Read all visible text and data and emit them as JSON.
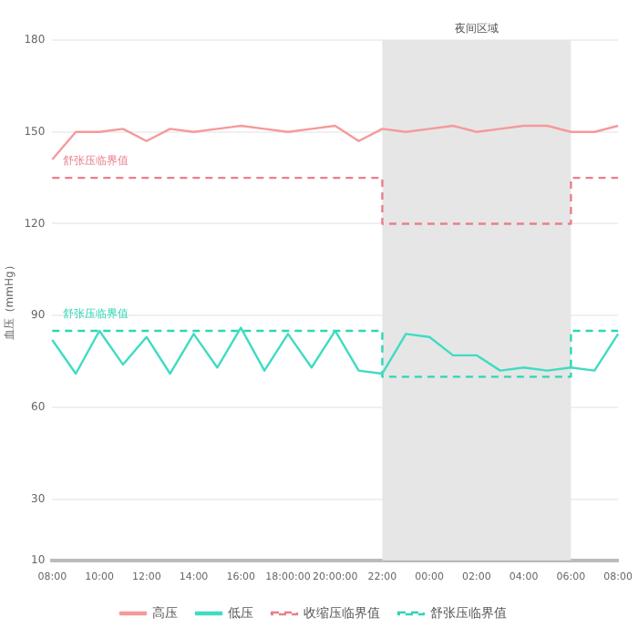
{
  "chart_data": {
    "type": "line",
    "ylabel": "血压（mmHg）",
    "categories": [
      "08:00",
      null,
      "10:00",
      null,
      "12:00",
      null,
      "14:00",
      null,
      "16:00",
      null,
      "18:00:00",
      null,
      "20:00:00",
      null,
      "22:00",
      null,
      "00:00",
      null,
      "02:00",
      null,
      "04:00",
      null,
      "06:00",
      null,
      "08:00"
    ],
    "series": [
      {
        "name": "高压",
        "color": "#f59a9a",
        "values": [
          141,
          150,
          150,
          151,
          147,
          151,
          150,
          151,
          152,
          151,
          150,
          151,
          152,
          147,
          151,
          150,
          151,
          152,
          150,
          151,
          152,
          152,
          150,
          150,
          152
        ]
      },
      {
        "name": "低压",
        "color": "#3fdcc2",
        "values": [
          82,
          71,
          85,
          74,
          83,
          71,
          84,
          73,
          86,
          72,
          84,
          73,
          85,
          72,
          71,
          84,
          83,
          77,
          77,
          72,
          73,
          72,
          73,
          72,
          84
        ]
      },
      {
        "name": "收缩压临界值",
        "type": "step",
        "line_style": "dashed",
        "color": "#e8808a",
        "values": [
          135,
          135,
          135,
          135,
          135,
          135,
          135,
          135,
          135,
          135,
          135,
          135,
          135,
          135,
          120,
          120,
          120,
          120,
          120,
          120,
          120,
          120,
          135,
          135,
          135
        ]
      },
      {
        "name": "舒张压临界值",
        "type": "step",
        "line_style": "dashed",
        "color": "#2ed6b4",
        "values": [
          85,
          85,
          85,
          85,
          85,
          85,
          85,
          85,
          85,
          85,
          85,
          85,
          85,
          85,
          70,
          70,
          70,
          70,
          70,
          70,
          70,
          70,
          85,
          85,
          85
        ]
      }
    ],
    "ylim": [
      10,
      180
    ],
    "yticks": [
      10,
      30,
      60,
      90,
      120,
      150,
      180
    ],
    "grid": "y",
    "legend": "bottom",
    "marker": "none",
    "bands": [
      {
        "axis": "x",
        "from": "22:00",
        "to": "06:00",
        "label": "夜间区域",
        "color": "#e6e6e6"
      }
    ],
    "annotations": [
      {
        "text": "舒张压临界值",
        "x": "08:00",
        "y": 135
      },
      {
        "text": "舒张压临界值",
        "x": "08:00",
        "y": 85
      }
    ]
  }
}
